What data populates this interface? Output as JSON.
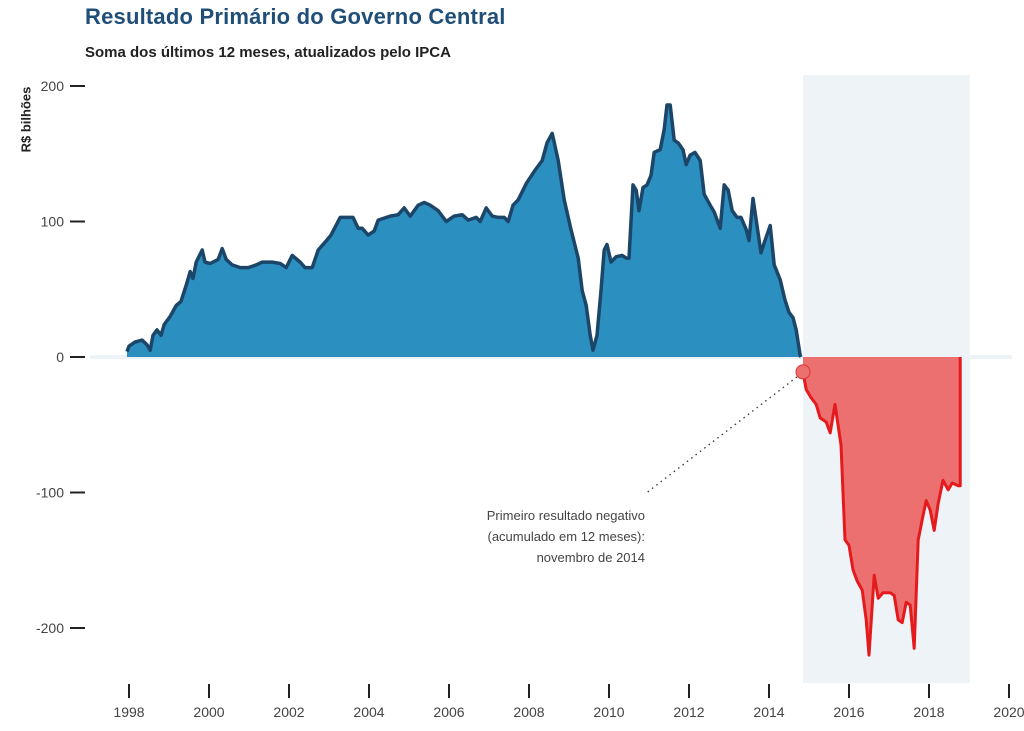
{
  "header": {
    "title": "Resultado Primário do Governo Central",
    "subtitle": "Soma dos últimos 12 meses, atualizados pelo IPCA"
  },
  "chart_data": {
    "type": "area",
    "title": "Resultado Primário do Governo Central",
    "subtitle": "Soma dos últimos 12 meses, atualizados pelo IPCA",
    "xlabel": "",
    "ylabel": "R$ bilhões",
    "xlim": [
      1997.5,
      2020
    ],
    "ylim": [
      -200,
      200
    ],
    "x_ticks": [
      1998,
      2000,
      2002,
      2004,
      2006,
      2008,
      2010,
      2012,
      2014,
      2016,
      2018,
      2020
    ],
    "x_tick_labels": [
      "1998",
      "2000",
      "2002",
      "2004",
      "2006",
      "2008",
      "2010",
      "2012",
      "2014",
      "2016",
      "2018",
      "2020"
    ],
    "y_ticks": [
      200,
      100,
      0,
      -100,
      -200
    ],
    "y_tick_labels": [
      "200",
      "100",
      "0",
      "-100",
      "-200"
    ],
    "grid": false,
    "colors": {
      "positive_fill": "#2b8fbf",
      "positive_line": "#1c4669",
      "negative_fill": "#ec7070",
      "negative_line": "#e41a1c",
      "highlight_band": "#eef3f7",
      "zero_line": "#eef3f7",
      "marker_fill": "#ec7070",
      "marker_stroke": "#d33"
    },
    "highlight_band": {
      "x_start": 2014.85,
      "x_end": 2019.02
    },
    "series": [
      {
        "name": "positive",
        "x": [
          1997.95,
          1998.0,
          1998.15,
          1998.33,
          1998.45,
          1998.53,
          1998.6,
          1998.7,
          1998.8,
          1998.88,
          1999.03,
          1999.18,
          1999.3,
          1999.43,
          1999.53,
          1999.6,
          1999.68,
          1999.83,
          1999.9,
          2000.03,
          2000.23,
          2000.33,
          2000.43,
          2000.58,
          2000.78,
          2000.98,
          2001.18,
          2001.33,
          2001.58,
          2001.78,
          2001.93,
          2002.08,
          2002.28,
          2002.4,
          2002.58,
          2002.73,
          2002.88,
          2003.05,
          2003.28,
          2003.48,
          2003.6,
          2003.73,
          2003.83,
          2003.98,
          2004.13,
          2004.23,
          2004.53,
          2004.73,
          2004.88,
          2005.03,
          2005.23,
          2005.38,
          2005.53,
          2005.73,
          2005.93,
          2006.13,
          2006.33,
          2006.48,
          2006.68,
          2006.78,
          2006.93,
          2007.08,
          2007.23,
          2007.38,
          2007.48,
          2007.6,
          2007.73,
          2007.93,
          2008.13,
          2008.33,
          2008.45,
          2008.58,
          2008.73,
          2008.88,
          2009.05,
          2009.23,
          2009.33,
          2009.43,
          2009.53,
          2009.6,
          2009.7,
          2009.8,
          2009.88,
          2009.95,
          2010.05,
          2010.18,
          2010.33,
          2010.43,
          2010.5,
          2010.6,
          2010.68,
          2010.75,
          2010.85,
          2010.95,
          2011.05,
          2011.13,
          2011.28,
          2011.38,
          2011.45,
          2011.53,
          2011.63,
          2011.73,
          2011.85,
          2011.93,
          2012.03,
          2012.15,
          2012.28,
          2012.38,
          2012.53,
          2012.63,
          2012.78,
          2012.88,
          2012.98,
          2013.08,
          2013.2,
          2013.3,
          2013.43,
          2013.5,
          2013.6,
          2013.7,
          2013.8,
          2013.9,
          2014.03,
          2014.13,
          2014.28,
          2014.4,
          2014.5,
          2014.6,
          2014.68,
          2014.78,
          2014.8
        ],
        "values": [
          4,
          8,
          11,
          12.5,
          9,
          5,
          16,
          20,
          16,
          24,
          30,
          38,
          41,
          53,
          63,
          58,
          70,
          79,
          70,
          69,
          72,
          80,
          72,
          68,
          66,
          66,
          68,
          70,
          70,
          69,
          66,
          75,
          70,
          66,
          66,
          79,
          84,
          90,
          103,
          103,
          103,
          95,
          95,
          90,
          93,
          101,
          104,
          105,
          110,
          104,
          112,
          114,
          112,
          108,
          100,
          104,
          105,
          101,
          103,
          100,
          110,
          104,
          103,
          103,
          100,
          112,
          116,
          128,
          137,
          145,
          158,
          165,
          145,
          116,
          94,
          73,
          49,
          38,
          16,
          5,
          16,
          49,
          79,
          83,
          70,
          74,
          75,
          73,
          73,
          127,
          123,
          108,
          125,
          127,
          134,
          151,
          153,
          168,
          186,
          186,
          160,
          158,
          153,
          142,
          149,
          151,
          145,
          120,
          112,
          107,
          95,
          127,
          123,
          108,
          103,
          103,
          94,
          86,
          117,
          97,
          77,
          86,
          97,
          68,
          57,
          42,
          33,
          29,
          20,
          1,
          0
        ]
      },
      {
        "name": "negative",
        "x": [
          2014.85,
          2014.93,
          2015.05,
          2015.18,
          2015.28,
          2015.43,
          2015.53,
          2015.65,
          2015.8,
          2015.9,
          2016.0,
          2016.1,
          2016.2,
          2016.33,
          2016.43,
          2016.5,
          2016.63,
          2016.73,
          2016.85,
          2017.03,
          2017.13,
          2017.23,
          2017.33,
          2017.43,
          2017.53,
          2017.63,
          2017.73,
          2017.83,
          2017.93,
          2018.03,
          2018.13,
          2018.23,
          2018.35,
          2018.48,
          2018.58,
          2018.73,
          2018.78
        ],
        "values": [
          -11,
          -24,
          -30,
          -35,
          -45,
          -48,
          -56,
          -35,
          -65,
          -135,
          -139,
          -157,
          -165,
          -172,
          -194,
          -220,
          -161,
          -178,
          -174,
          -174,
          -176,
          -194,
          -196,
          -181,
          -183,
          -215,
          -135,
          -120,
          -106,
          -113,
          -128,
          -108,
          -91,
          -98,
          -93,
          -95,
          -95
        ]
      }
    ],
    "annotations": [
      {
        "text_lines": [
          "Primeiro resultado negativo",
          "(acumulado em 12 meses):",
          "novembro de 2014"
        ],
        "point": {
          "x": 2014.85,
          "y": -11
        }
      }
    ]
  }
}
